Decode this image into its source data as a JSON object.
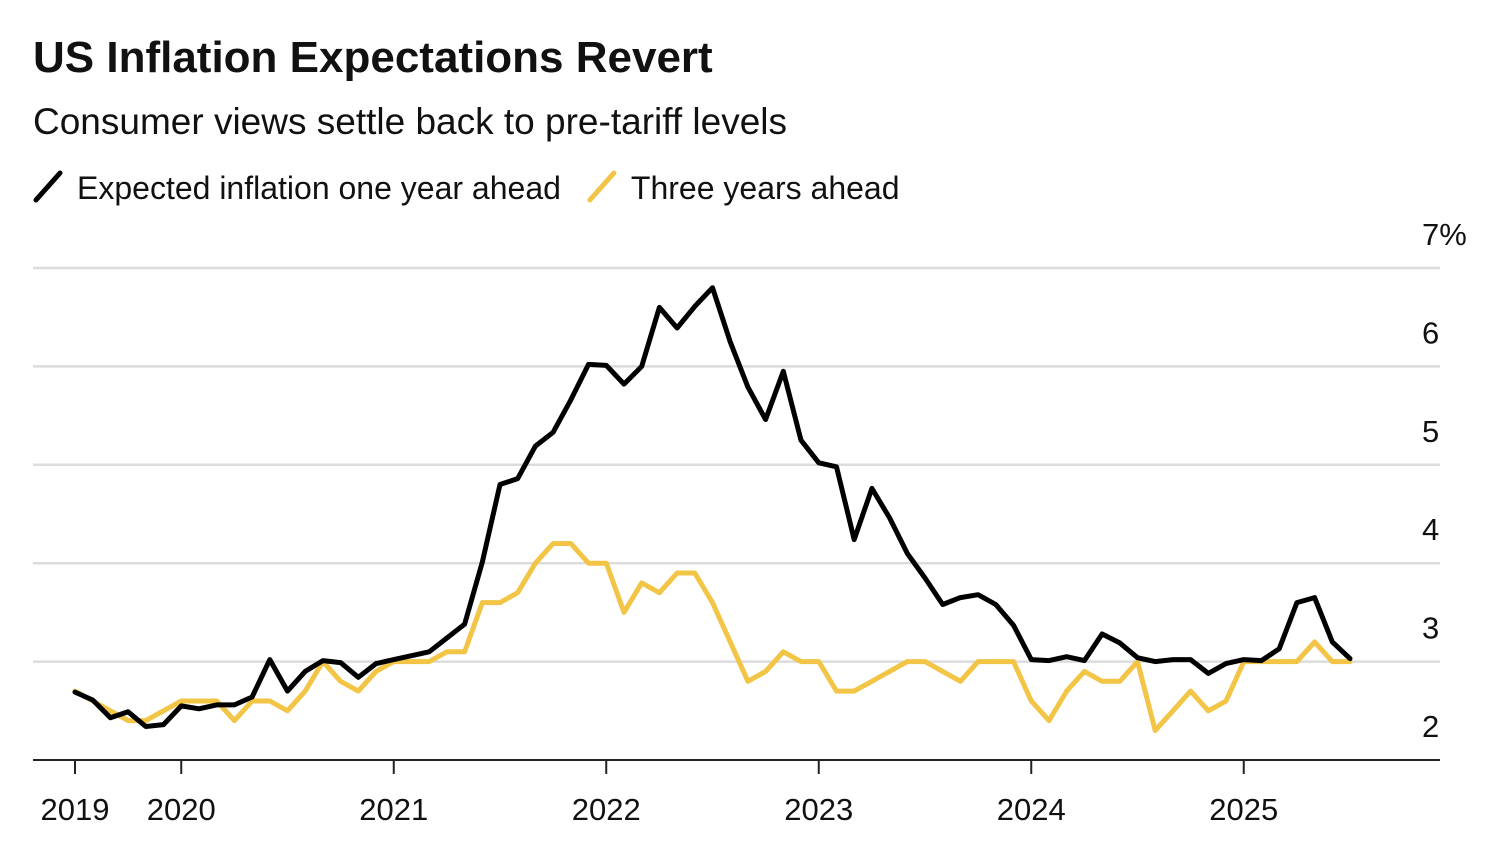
{
  "chart_data": {
    "type": "line",
    "title": "US Inflation Expectations Revert",
    "subtitle": "Consumer views settle back to pre-tariff levels",
    "categories": [
      "2019",
      null,
      null,
      null,
      null,
      null,
      "2020",
      null,
      null,
      null,
      null,
      null,
      null,
      null,
      null,
      null,
      null,
      null,
      "2021",
      null,
      null,
      null,
      null,
      null,
      null,
      null,
      null,
      null,
      null,
      null,
      "2022",
      null,
      null,
      null,
      null,
      null,
      null,
      null,
      null,
      null,
      null,
      null,
      "2023",
      null,
      null,
      null,
      null,
      null,
      null,
      null,
      null,
      null,
      null,
      null,
      "2024",
      null,
      null,
      null,
      null,
      null,
      null,
      null,
      null,
      null,
      null,
      null,
      "2025",
      null,
      null,
      null,
      null,
      null,
      null
    ],
    "series": [
      {
        "name": "Expected inflation one year ahead",
        "color": "#000000",
        "values": [
          2.69,
          2.61,
          2.43,
          2.49,
          2.34,
          2.36,
          2.55,
          2.52,
          2.56,
          2.56,
          2.64,
          3.02,
          2.7,
          2.9,
          3.01,
          2.99,
          2.84,
          2.98,
          3.02,
          3.06,
          3.1,
          3.24,
          3.38,
          4.01,
          4.8,
          4.86,
          5.19,
          5.33,
          5.66,
          6.02,
          6.01,
          5.82,
          6.0,
          6.6,
          6.39,
          6.61,
          6.8,
          6.25,
          5.79,
          5.46,
          5.95,
          5.25,
          5.02,
          4.98,
          4.24,
          4.76,
          4.46,
          4.1,
          3.85,
          3.58,
          3.65,
          3.68,
          3.58,
          3.37,
          3.02,
          3.01,
          3.05,
          3.01,
          3.28,
          3.19,
          3.04,
          3.0,
          3.02,
          3.02,
          2.88,
          2.98,
          3.02,
          3.01,
          3.13,
          3.6,
          3.65,
          3.2,
          3.03
        ]
      },
      {
        "name": "Three years ahead",
        "color": "#f2c546",
        "values": [
          2.7,
          2.6,
          2.5,
          2.4,
          2.4,
          2.5,
          2.6,
          2.6,
          2.6,
          2.4,
          2.6,
          2.6,
          2.5,
          2.7,
          3.0,
          2.8,
          2.7,
          2.9,
          3.0,
          3.0,
          3.0,
          3.1,
          3.1,
          3.6,
          3.6,
          3.7,
          4.0,
          4.2,
          4.2,
          4.0,
          4.0,
          3.5,
          3.8,
          3.7,
          3.9,
          3.9,
          3.6,
          3.2,
          2.8,
          2.9,
          3.1,
          3.0,
          3.0,
          2.7,
          2.7,
          2.8,
          2.9,
          3.0,
          3.0,
          2.9,
          2.8,
          3.0,
          3.0,
          3.0,
          2.6,
          2.4,
          2.7,
          2.9,
          2.8,
          2.8,
          3.0,
          2.3,
          2.5,
          2.7,
          2.5,
          2.6,
          3.0,
          3.0,
          3.0,
          3.0,
          3.2,
          3.0,
          3.0
        ]
      }
    ],
    "ylim": [
      2,
      7
    ],
    "yticks": [
      2,
      3,
      4,
      5,
      6,
      {
        "value": 7,
        "label": "7%"
      }
    ],
    "grid": true
  }
}
